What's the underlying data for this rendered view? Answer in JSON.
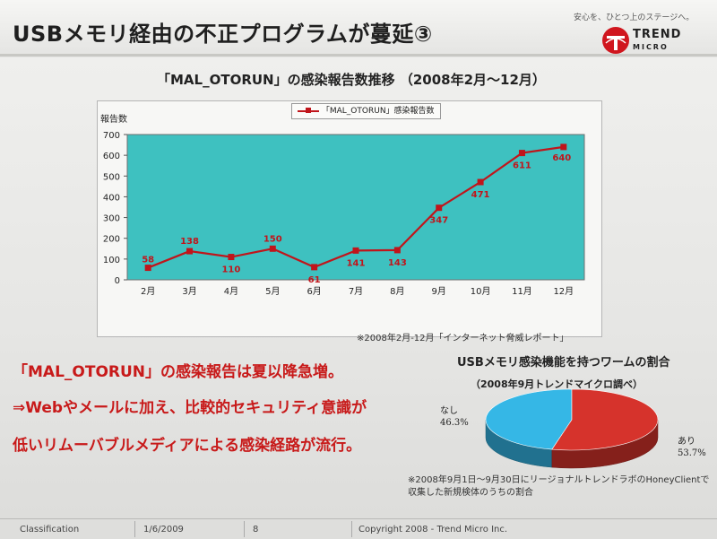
{
  "slide": {
    "title": "USBメモリ経由の不正プログラムが蔓延③",
    "tagline": "安心を、ひとつ上のステージへ。",
    "logo_text_top": "TREND",
    "logo_text_bottom": "MICRO"
  },
  "chart_title": "「MAL_OTORUN」の感染報告数推移 （2008年2月～12月）",
  "source_note": "※2008年2月-12月「インターネット脅威レポート」",
  "chart_data": [
    {
      "type": "line",
      "title": "「MAL_OTORUN」の感染報告数推移 （2008年2月～12月）",
      "ylabel": "報告数",
      "xlabel": "",
      "categories": [
        "2月",
        "3月",
        "4月",
        "5月",
        "6月",
        "7月",
        "8月",
        "9月",
        "10月",
        "11月",
        "12月"
      ],
      "series": [
        {
          "name": "「MAL_OTORUN」感染報告数",
          "values": [
            58,
            138,
            110,
            150,
            61,
            141,
            143,
            347,
            471,
            611,
            640
          ],
          "color": "#c0151b"
        }
      ],
      "ylim": [
        0,
        700
      ],
      "yticks": [
        0,
        100,
        200,
        300,
        400,
        500,
        600,
        700
      ],
      "grid": false,
      "plot_background": "#3ec1c0",
      "legend_position": "top"
    },
    {
      "type": "pie",
      "title": "USBメモリ感染機能を持つワームの割合",
      "subtitle": "（2008年9月トレンドマイクロ調べ）",
      "slices": [
        {
          "label": "なし",
          "value": 46.3,
          "display": "46.3%",
          "color": "#35b7e6"
        },
        {
          "label": "あり",
          "value": 53.7,
          "display": "53.7%",
          "color": "#d6332c"
        }
      ],
      "note": "※2008年9月1日～9月30日にリージョナルトレンドラボのHoneyClientで収集した新規検体のうちの割合"
    }
  ],
  "main_text": {
    "line1": "「MAL_OTORUN」の感染報告は夏以降急増。",
    "line2": "⇒Webやメールに加え、比較的セキュリティ意識が",
    "line3": "低いリムーバブルメディアによる感染経路が流行。"
  },
  "footer": {
    "classification": "Classification",
    "date": "1/6/2009",
    "page": "8",
    "copyright": "Copyright 2008 - Trend Micro Inc."
  },
  "colors": {
    "accent_red": "#c81a1a",
    "line_red": "#c0151b",
    "plot_teal": "#3ec1c0"
  }
}
